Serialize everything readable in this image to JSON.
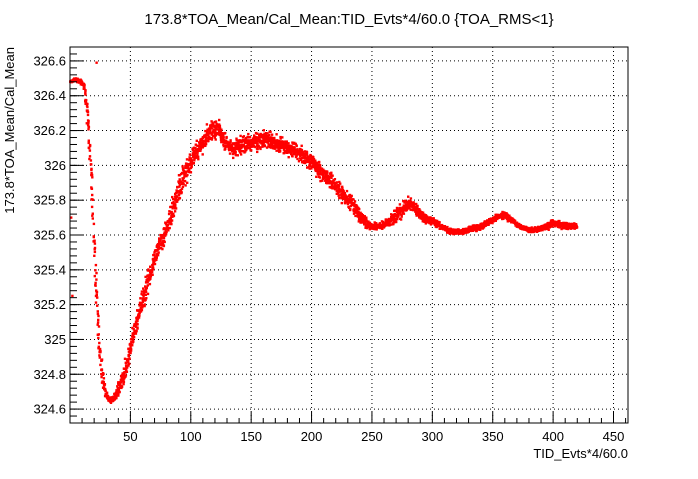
{
  "chart_data": {
    "type": "scatter",
    "title": "173.8*TOA_Mean/Cal_Mean:TID_Evts*4/60.0 {TOA_RMS<1}",
    "xlabel": "TID_Evts*4/60.0",
    "ylabel": "173.8*TOA_Mean/Cal_Mean",
    "xlim": [
      0,
      462
    ],
    "ylim": [
      324.52,
      326.68
    ],
    "grid": true,
    "x_ticks": [
      50,
      100,
      150,
      200,
      250,
      300,
      350,
      400,
      450
    ],
    "x_tick_labels": [
      "50",
      "100",
      "150",
      "200",
      "250",
      "300",
      "350",
      "400",
      "450"
    ],
    "y_ticks": [
      324.6,
      324.8,
      325.0,
      325.2,
      325.4,
      325.6,
      325.8,
      326.0,
      326.2,
      326.4,
      326.6
    ],
    "y_tick_labels": [
      "324.6",
      "324.8",
      "325",
      "325.2",
      "325.4",
      "325.6",
      "325.8",
      "326",
      "326.2",
      "326.4",
      "326.6"
    ],
    "marker_color": "#ff0000",
    "series": [
      {
        "x": [
          0,
          3,
          6,
          9,
          12,
          15,
          18,
          21,
          24,
          27,
          30,
          33,
          36,
          39,
          42,
          45,
          48,
          51,
          54,
          57,
          60,
          63,
          66,
          69,
          72,
          75,
          78,
          81,
          84,
          87,
          90,
          93,
          96,
          99,
          102,
          105,
          108,
          111,
          114,
          117,
          120,
          123,
          126,
          129,
          132,
          135,
          138,
          141,
          144,
          147,
          150,
          155,
          160,
          165,
          170,
          175,
          180,
          185,
          190,
          195,
          200,
          205,
          210,
          215,
          220,
          225,
          230,
          235,
          240,
          245,
          250,
          255,
          260,
          265,
          270,
          275,
          280,
          285,
          290,
          295,
          300,
          305,
          310,
          315,
          320,
          325,
          330,
          335,
          340,
          345,
          350,
          355,
          360,
          365,
          370,
          375,
          380,
          385,
          390,
          395,
          400,
          405,
          410,
          415,
          420
        ],
        "y": [
          326.48,
          326.49,
          326.49,
          326.48,
          326.45,
          326.25,
          325.9,
          325.4,
          325.0,
          324.78,
          324.68,
          324.65,
          324.66,
          324.69,
          324.74,
          324.8,
          324.88,
          324.97,
          325.06,
          325.14,
          325.22,
          325.3,
          325.37,
          325.44,
          325.5,
          325.55,
          325.6,
          325.66,
          325.72,
          325.79,
          325.86,
          325.92,
          325.97,
          326.01,
          326.05,
          326.08,
          326.11,
          326.14,
          326.17,
          326.2,
          326.21,
          326.2,
          326.17,
          326.13,
          326.1,
          326.09,
          326.1,
          326.11,
          326.12,
          326.13,
          326.13,
          326.14,
          326.15,
          326.14,
          326.13,
          326.12,
          326.1,
          326.09,
          326.07,
          326.05,
          326.02,
          325.98,
          325.95,
          325.92,
          325.88,
          325.84,
          325.8,
          325.76,
          325.71,
          325.67,
          325.65,
          325.65,
          325.66,
          325.68,
          325.71,
          325.74,
          325.78,
          325.76,
          325.72,
          325.69,
          325.68,
          325.66,
          325.64,
          325.62,
          325.62,
          325.62,
          325.63,
          325.64,
          325.65,
          325.67,
          325.69,
          325.71,
          325.71,
          325.69,
          325.66,
          325.64,
          325.63,
          325.63,
          325.64,
          325.65,
          325.67,
          325.66,
          325.65,
          325.65,
          325.65
        ],
        "spread": [
          0.008,
          0.008,
          0.008,
          0.01,
          0.015,
          0.05,
          0.08,
          0.08,
          0.06,
          0.04,
          0.02,
          0.015,
          0.02,
          0.03,
          0.04,
          0.05,
          0.06,
          0.06,
          0.06,
          0.07,
          0.07,
          0.07,
          0.07,
          0.06,
          0.06,
          0.06,
          0.06,
          0.06,
          0.07,
          0.07,
          0.08,
          0.07,
          0.07,
          0.06,
          0.06,
          0.06,
          0.06,
          0.06,
          0.06,
          0.06,
          0.06,
          0.06,
          0.06,
          0.05,
          0.05,
          0.05,
          0.05,
          0.05,
          0.05,
          0.05,
          0.05,
          0.05,
          0.05,
          0.05,
          0.05,
          0.05,
          0.05,
          0.05,
          0.05,
          0.05,
          0.05,
          0.05,
          0.05,
          0.05,
          0.05,
          0.05,
          0.05,
          0.05,
          0.04,
          0.03,
          0.02,
          0.02,
          0.02,
          0.03,
          0.04,
          0.04,
          0.04,
          0.04,
          0.03,
          0.03,
          0.02,
          0.02,
          0.015,
          0.015,
          0.015,
          0.015,
          0.015,
          0.02,
          0.02,
          0.02,
          0.02,
          0.02,
          0.02,
          0.02,
          0.015,
          0.015,
          0.015,
          0.015,
          0.015,
          0.02,
          0.02,
          0.02,
          0.02,
          0.015,
          0.015
        ]
      }
    ],
    "outliers": [
      {
        "x": 22,
        "y": 326.59
      },
      {
        "x": 1,
        "y": 325.7
      },
      {
        "x": 2,
        "y": 325.25
      }
    ]
  }
}
